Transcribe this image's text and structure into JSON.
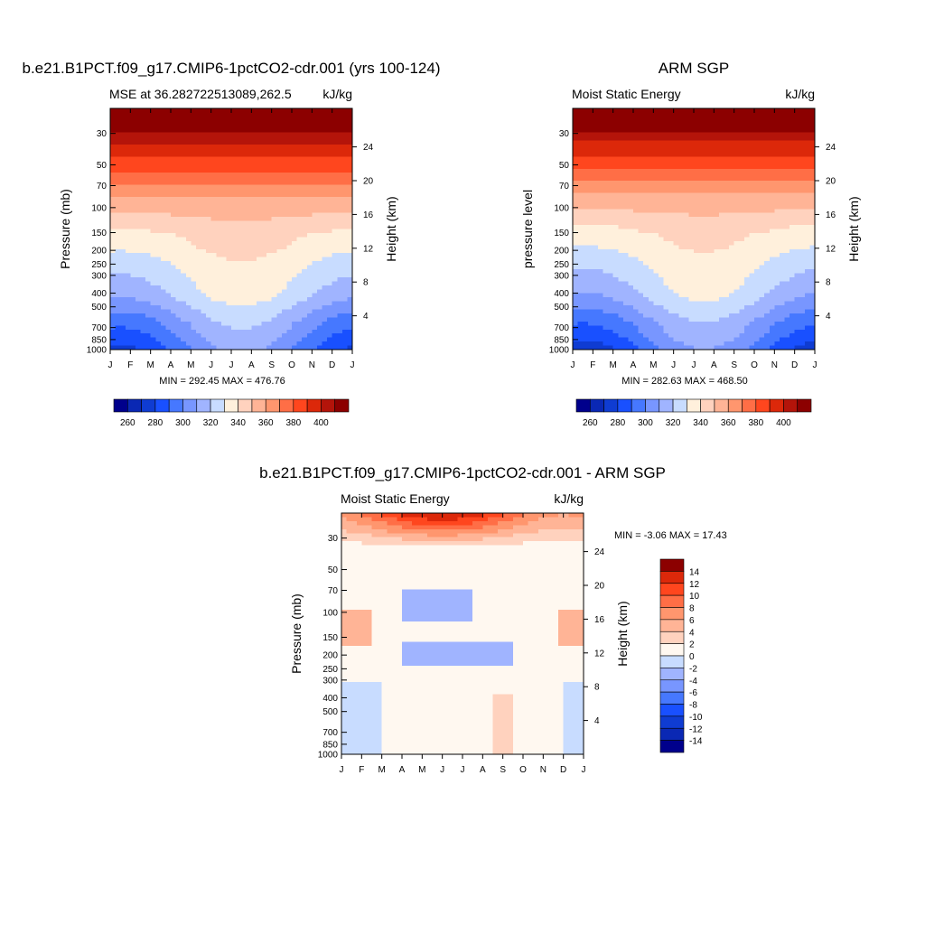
{
  "chart_data": [
    {
      "type": "heatmap",
      "title": "b.e21.B1PCT.f09_g17.CMIP6-1pctCO2-cdr.001 (yrs 100-124)",
      "subtitle_left": "MSE at 36.282722513089,262.5",
      "units": "kJ/kg",
      "ylabel": "Pressure (mb)",
      "ylabel_right": "Height (km)",
      "xlabel": "",
      "x_ticks": [
        "J",
        "F",
        "M",
        "A",
        "M",
        "J",
        "J",
        "A",
        "S",
        "O",
        "N",
        "D",
        "J"
      ],
      "y_ticks": [
        30,
        50,
        70,
        100,
        150,
        200,
        250,
        300,
        400,
        500,
        700,
        850,
        1000
      ],
      "y_right_ticks": [
        24,
        20,
        16,
        12,
        8,
        4
      ],
      "ylim": [
        1000,
        20
      ],
      "y_scale": "log",
      "stats_text": "MIN = 292.45 MAX = 476.76",
      "levels": [
        260,
        265,
        270,
        275,
        280,
        285,
        290,
        295,
        300,
        305,
        310,
        315,
        320,
        325,
        330,
        335,
        340,
        345,
        350,
        355,
        360,
        365,
        370,
        375,
        380,
        385,
        390,
        395,
        400
      ],
      "colorbar": {
        "orientation": "horizontal",
        "labels": [
          "260",
          "280",
          "300",
          "320",
          "340",
          "360",
          "380",
          "400"
        ],
        "colors": [
          "#00008c",
          "#0a28b4",
          "#0f3cd2",
          "#1950ff",
          "#4678ff",
          "#7896ff",
          "#a0b4ff",
          "#c8dcff",
          "#fff0dc",
          "#ffd2be",
          "#ffb496",
          "#ff966e",
          "#ff6e46",
          "#ff461e",
          "#dc280a",
          "#b4140a",
          "#8c0000"
        ]
      },
      "profile": [
        295,
        300,
        305,
        311,
        318,
        322,
        325,
        328,
        332,
        335,
        340,
        346,
        352,
        360,
        370,
        378,
        385,
        395,
        410,
        440
      ]
    },
    {
      "type": "heatmap",
      "title": "ARM SGP",
      "subtitle_left": "Moist Static Energy",
      "units": "kJ/kg",
      "ylabel": "pressure level",
      "ylabel_right": "Height (km)",
      "xlabel": "",
      "x_ticks": [
        "J",
        "F",
        "M",
        "A",
        "M",
        "J",
        "J",
        "A",
        "S",
        "O",
        "N",
        "D",
        "J"
      ],
      "y_ticks": [
        30,
        50,
        70,
        100,
        150,
        200,
        250,
        300,
        400,
        500,
        700,
        850,
        1000
      ],
      "y_right_ticks": [
        24,
        20,
        16,
        12,
        8,
        4
      ],
      "ylim": [
        1000,
        20
      ],
      "y_scale": "log",
      "stats_text": "MIN = 282.63 MAX = 468.50",
      "levels": [
        260,
        265,
        270,
        275,
        280,
        285,
        290,
        295,
        300,
        305,
        310,
        315,
        320,
        325,
        330,
        335,
        340,
        345,
        350,
        355,
        360,
        365,
        370,
        375,
        380,
        385,
        390,
        395,
        400
      ],
      "colorbar": {
        "orientation": "horizontal",
        "labels": [
          "260",
          "280",
          "300",
          "320",
          "340",
          "360",
          "380",
          "400"
        ],
        "colors": [
          "#00008c",
          "#0a28b4",
          "#0f3cd2",
          "#1950ff",
          "#4678ff",
          "#7896ff",
          "#a0b4ff",
          "#c8dcff",
          "#fff0dc",
          "#ffd2be",
          "#ffb496",
          "#ff966e",
          "#ff6e46",
          "#ff461e",
          "#dc280a",
          "#b4140a",
          "#8c0000"
        ]
      },
      "profile": [
        292,
        298,
        303,
        309,
        316,
        320,
        323,
        326,
        330,
        333,
        338,
        344,
        350,
        358,
        368,
        376,
        384,
        394,
        408,
        436
      ]
    },
    {
      "type": "heatmap",
      "title": "b.e21.B1PCT.f09_g17.CMIP6-1pctCO2-cdr.001 - ARM SGP",
      "subtitle_left": "Moist Static Energy",
      "units": "kJ/kg",
      "ylabel": "Pressure (mb)",
      "ylabel_right": "Height (km)",
      "xlabel": "",
      "x_ticks": [
        "J",
        "F",
        "M",
        "A",
        "M",
        "J",
        "J",
        "A",
        "S",
        "O",
        "N",
        "D",
        "J"
      ],
      "y_ticks": [
        30,
        50,
        70,
        100,
        150,
        200,
        250,
        300,
        400,
        500,
        700,
        850,
        1000
      ],
      "y_right_ticks": [
        24,
        20,
        16,
        12,
        8,
        4
      ],
      "ylim": [
        1000,
        20
      ],
      "y_scale": "log",
      "stats_text": "MIN =  -3.06 MAX =  17.43",
      "levels": [
        -14,
        -12,
        -10,
        -8,
        -6,
        -4,
        -2,
        0,
        2,
        4,
        6,
        8,
        10,
        12,
        14
      ],
      "colorbar": {
        "orientation": "vertical",
        "labels": [
          "-14",
          "-12",
          "-10",
          "-8",
          "-6",
          "-4",
          "-2",
          "0",
          "2",
          "4",
          "6",
          "8",
          "10",
          "12",
          "14"
        ],
        "colors": [
          "#00008c",
          "#0a28b4",
          "#0f3cd2",
          "#1950ff",
          "#4678ff",
          "#7896ff",
          "#a0b4ff",
          "#c8dcff",
          "#fff8f0",
          "#ffd2be",
          "#ffb496",
          "#ff966e",
          "#ff6e46",
          "#ff461e",
          "#dc280a",
          "#8c0000"
        ]
      }
    }
  ]
}
